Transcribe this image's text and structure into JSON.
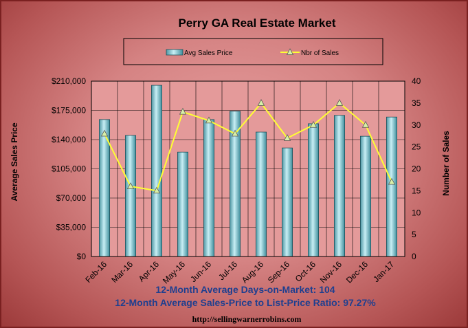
{
  "chart_data": {
    "type": "bar",
    "title": "Perry GA Real Estate Market",
    "categories": [
      "Feb-16",
      "Mar-16",
      "Apr-16",
      "May-16",
      "Jun-16",
      "Jul-16",
      "Aug-16",
      "Sep-16",
      "Oct-16",
      "Nov-16",
      "Dec-16",
      "Jan-17"
    ],
    "series": [
      {
        "name": "Avg Sales Price",
        "type": "bar",
        "axis": "left",
        "values": [
          164000,
          145000,
          205000,
          125000,
          164000,
          174000,
          149000,
          130000,
          159000,
          169000,
          144000,
          167000
        ]
      },
      {
        "name": "Nbr of Sales",
        "type": "line",
        "axis": "right",
        "values": [
          28,
          16,
          15,
          33,
          31,
          28,
          35,
          27,
          30,
          35,
          30,
          17
        ]
      }
    ],
    "ylabel": "Average Sales Price",
    "y2label": "Number of Sales",
    "ylim": [
      0,
      210000
    ],
    "y2lim": [
      0,
      40
    ],
    "yticks": [
      "$0",
      "$35,000",
      "$70,000",
      "$105,000",
      "$140,000",
      "$175,000",
      "$210,000"
    ],
    "y2ticks": [
      "0",
      "5",
      "10",
      "15",
      "20",
      "25",
      "30",
      "35",
      "40"
    ],
    "grid": true,
    "legend": "top"
  },
  "colors": {
    "bar": "#8ed0dc",
    "bar_dark": "#3f8e9c",
    "line": "#ffff33",
    "plot_bg": "#e49a9a",
    "footer_text": "#1f3f8f"
  },
  "footer": {
    "line1": "12-Month Average Days-on-Market: 104",
    "line2": "12-Month Average Sales-Price to List-Price Ratio: 97.27%",
    "url": "http://sellingwarnerrobins.com"
  }
}
